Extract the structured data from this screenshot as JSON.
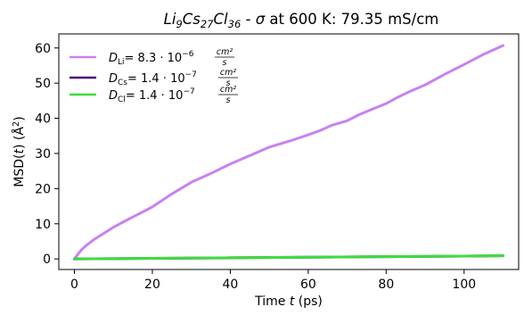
{
  "chart_data": {
    "type": "line",
    "title": {
      "formula_parts": [
        {
          "text": "Li",
          "sub": "9"
        },
        {
          "text": "Cs",
          "sub": "27"
        },
        {
          "text": "Cl",
          "sub": "36"
        }
      ],
      "sigma_symbol": "σ",
      "text": " - ",
      "suffix": " at 600 K: 79.35 mS/cm"
    },
    "xlabel": {
      "prefix": "Time ",
      "var": "t",
      "suffix": " (ps)"
    },
    "ylabel": {
      "prefix": "MSD(",
      "var": "t",
      "suffix": ") (Å",
      "sup": "2",
      "end": ")"
    },
    "xlim": [
      -4,
      114
    ],
    "ylim": [
      -3,
      64
    ],
    "xticks": [
      0,
      20,
      40,
      60,
      80,
      100
    ],
    "yticks": [
      0,
      10,
      20,
      30,
      40,
      50,
      60
    ],
    "grid": false,
    "legend_position": "top-left",
    "series": [
      {
        "name": "D_Li",
        "label_main": "D",
        "label_sub": "Li",
        "label_value": "= 8.3 · 10",
        "label_exp": "−6",
        "unit_num": "cm²",
        "unit_den": "s",
        "color": "#c882f0",
        "x": [
          0,
          1,
          2,
          3,
          5,
          8,
          10,
          13,
          16,
          20,
          25,
          30,
          35,
          40,
          45,
          50,
          53,
          56,
          60,
          63,
          66,
          70,
          73,
          76,
          80,
          83,
          86,
          90,
          95,
          100,
          105,
          110
        ],
        "y": [
          0,
          1.5,
          2.8,
          3.8,
          5.5,
          7.6,
          9.0,
          10.8,
          12.5,
          14.8,
          18.5,
          21.8,
          24.3,
          27.0,
          29.4,
          31.8,
          32.8,
          33.8,
          35.3,
          36.5,
          38.0,
          39.3,
          41.0,
          42.4,
          44.2,
          46.0,
          47.6,
          49.5,
          52.5,
          55.3,
          58.2,
          60.7
        ]
      },
      {
        "name": "D_Cs",
        "label_main": "D",
        "label_sub": "Cs",
        "label_value": "= 1.4 · 10",
        "label_exp": "−7",
        "unit_num": "cm²",
        "unit_den": "s",
        "color": "#4b0d7a",
        "x": [
          0,
          20,
          40,
          60,
          80,
          100,
          110
        ],
        "y": [
          0,
          0.16,
          0.32,
          0.48,
          0.64,
          0.8,
          0.9
        ]
      },
      {
        "name": "D_Cl",
        "label_main": "D",
        "label_sub": "Cl",
        "label_value": "= 1.4 · 10",
        "label_exp": "−7",
        "unit_num": "cm²",
        "unit_den": "s",
        "color": "#3fdc3f",
        "x": [
          0,
          20,
          40,
          60,
          80,
          100,
          110
        ],
        "y": [
          0,
          0.16,
          0.33,
          0.49,
          0.65,
          0.82,
          0.92
        ]
      }
    ]
  }
}
